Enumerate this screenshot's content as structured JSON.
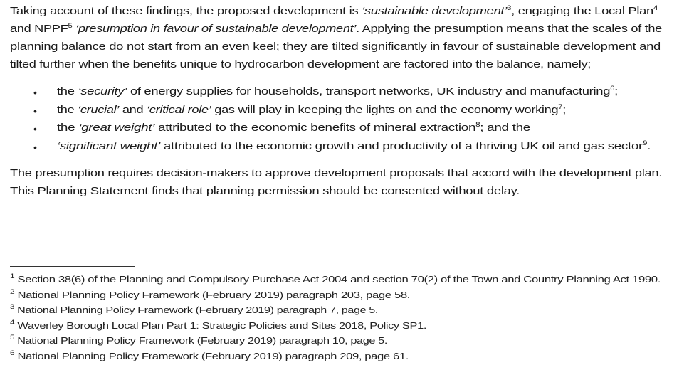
{
  "body": {
    "paragraph1": [
      [
        {
          "t": "Taking account of these findings, the proposed development is "
        },
        {
          "t": "‘sustainable development’",
          "i": true
        },
        {
          "t": "3",
          "s": true
        },
        {
          "t": ", engaging the Local Plan"
        },
        {
          "t": "4",
          "s": true
        }
      ],
      [
        {
          "t": "and NPPF"
        },
        {
          "t": "5",
          "s": true
        },
        {
          "t": " "
        },
        {
          "t": "‘presumption in favour of sustainable development’",
          "i": true
        },
        {
          "t": ". Applying the presumption means that the scales of the"
        }
      ],
      [
        {
          "t": "planning balance do not start from an even keel; they are tilted significantly in favour of sustainable development and"
        }
      ],
      [
        {
          "t": "tilted further when the benefits unique to hydrocarbon development are factored into the balance, namely;"
        }
      ]
    ],
    "bullets": [
      [
        {
          "t": "the "
        },
        {
          "t": "‘security’",
          "i": true
        },
        {
          "t": " of energy supplies for households, transport networks, UK industry and manufacturing"
        },
        {
          "t": "6",
          "s": true
        },
        {
          "t": ";"
        }
      ],
      [
        {
          "t": "the "
        },
        {
          "t": "‘crucial’",
          "i": true
        },
        {
          "t": " and "
        },
        {
          "t": "‘critical role’",
          "i": true
        },
        {
          "t": " gas will play in keeping the lights on and the economy working"
        },
        {
          "t": "7",
          "s": true
        },
        {
          "t": ";"
        }
      ],
      [
        {
          "t": "the "
        },
        {
          "t": "‘great weight’",
          "i": true
        },
        {
          "t": " attributed to the economic benefits of mineral extraction"
        },
        {
          "t": "8",
          "s": true
        },
        {
          "t": "; and the"
        }
      ],
      [
        {
          "t": "‘significant weight’",
          "i": true
        },
        {
          "t": " attributed to the economic growth and productivity of a thriving UK oil and gas sector"
        },
        {
          "t": "9",
          "s": true
        },
        {
          "t": "."
        }
      ]
    ],
    "bullet_glyph": "•",
    "paragraph2": [
      [
        {
          "t": "The presumption requires decision-makers to approve development proposals that accord with the development plan."
        }
      ],
      [
        {
          "t": "This Planning Statement finds that planning permission should be consented without delay."
        }
      ]
    ]
  },
  "footnotes": [
    {
      "n": "1",
      "text": "Section 38(6) of the Planning and Compulsory Purchase Act 2004 and section 70(2) of the Town and Country Planning Act 1990."
    },
    {
      "n": "2",
      "text": "National Planning Policy Framework (February 2019) paragraph 203, page 58."
    },
    {
      "n": "3",
      "text": "National Planning Policy Framework (February 2019) paragraph 7, page 5."
    },
    {
      "n": "4",
      "text": "Waverley Borough Local Plan Part 1: Strategic Policies and Sites 2018, Policy SP1."
    },
    {
      "n": "5",
      "text": "National Planning Policy Framework (February 2019) paragraph 10, page 5."
    },
    {
      "n": "6",
      "text": "National Planning Policy Framework (February 2019) paragraph 209, page 61."
    }
  ]
}
